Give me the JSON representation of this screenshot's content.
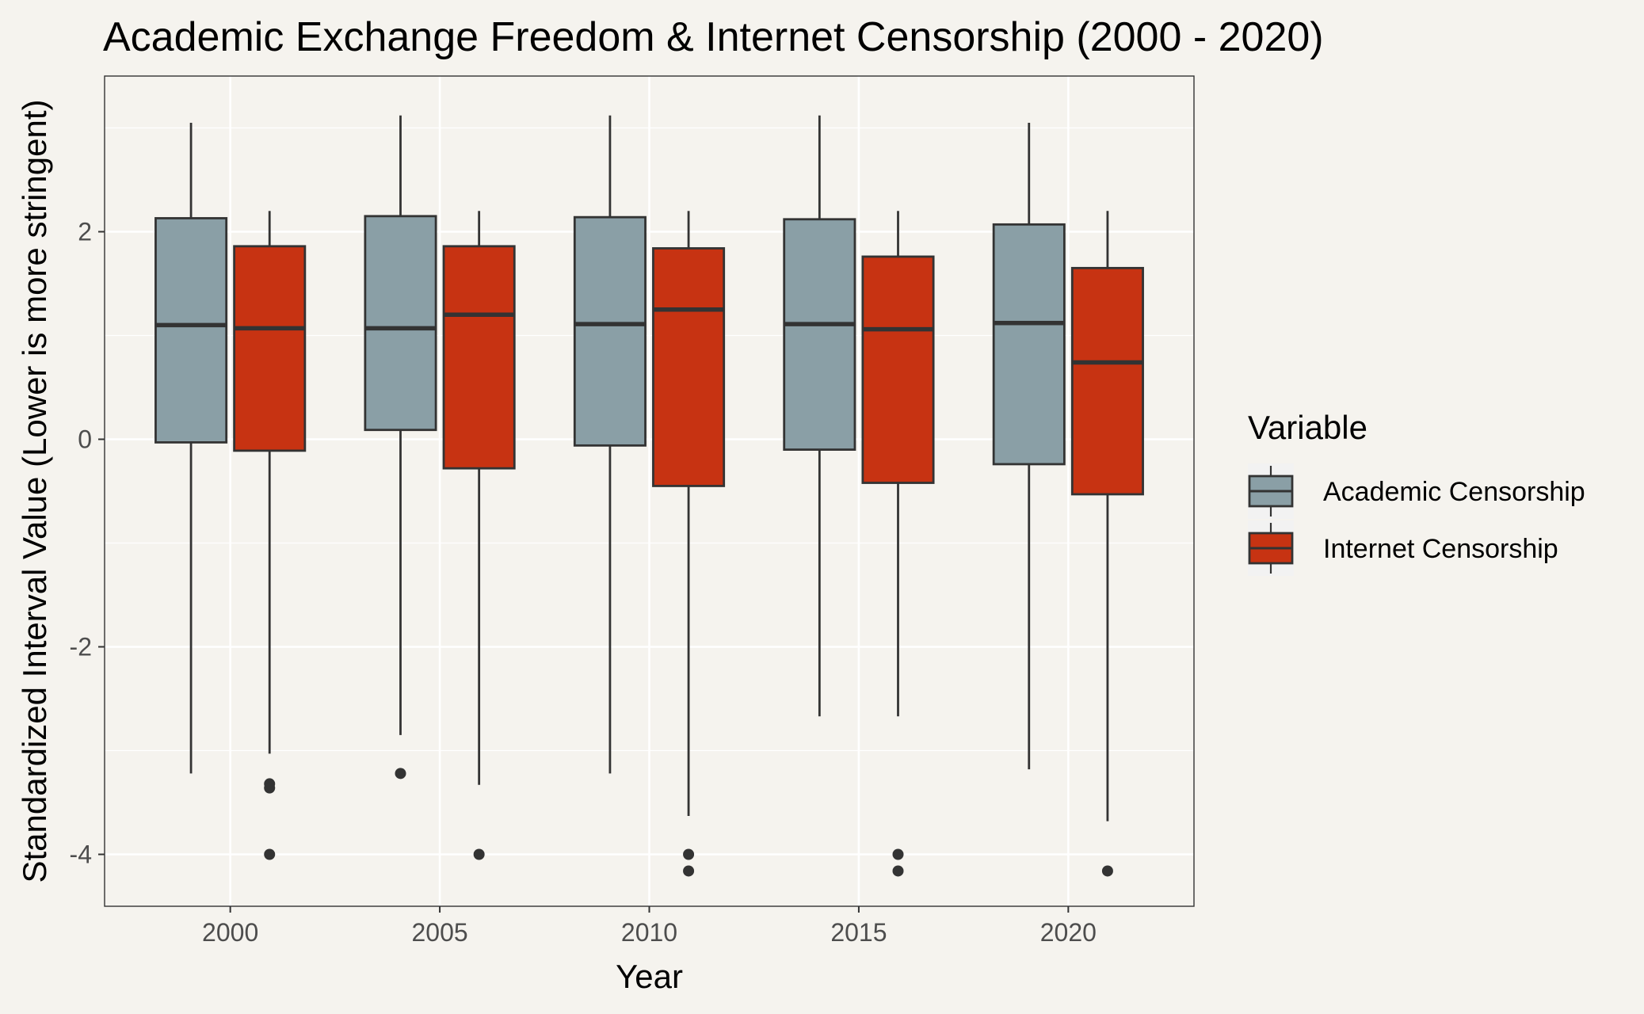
{
  "chart_data": {
    "type": "boxplot",
    "title": "Academic Exchange Freedom & Internet Censorship (2000 - 2020)",
    "xlabel": "Year",
    "ylabel": "Standardized Interval Value (Lower is more stringent)",
    "categories": [
      "2000",
      "2005",
      "2010",
      "2015",
      "2020"
    ],
    "ylim": [
      -4.5,
      3.5
    ],
    "yticks": [
      -4,
      -2,
      0,
      2
    ],
    "ytick_labels": [
      "-4",
      "-2",
      "0",
      "2"
    ],
    "grid": true,
    "legend": {
      "title": "Variable",
      "position": "right"
    },
    "series": [
      {
        "name": "Academic Censorship",
        "color": "#8A9FA6",
        "boxes": [
          {
            "whisker_low": -3.22,
            "q1": -0.03,
            "median": 1.1,
            "q3": 2.13,
            "whisker_high": 3.05,
            "outliers": []
          },
          {
            "whisker_low": -2.85,
            "q1": 0.09,
            "median": 1.07,
            "q3": 2.15,
            "whisker_high": 3.12,
            "outliers": [
              -3.22
            ]
          },
          {
            "whisker_low": -3.22,
            "q1": -0.06,
            "median": 1.11,
            "q3": 2.14,
            "whisker_high": 3.12,
            "outliers": []
          },
          {
            "whisker_low": -2.67,
            "q1": -0.1,
            "median": 1.11,
            "q3": 2.12,
            "whisker_high": 3.12,
            "outliers": []
          },
          {
            "whisker_low": -3.18,
            "q1": -0.24,
            "median": 1.12,
            "q3": 2.07,
            "whisker_high": 3.05,
            "outliers": []
          }
        ]
      },
      {
        "name": "Internet Censorship",
        "color": "#C73312",
        "boxes": [
          {
            "whisker_low": -3.03,
            "q1": -0.11,
            "median": 1.07,
            "q3": 1.86,
            "whisker_high": 2.2,
            "outliers": [
              -3.32,
              -3.36,
              -4.0
            ]
          },
          {
            "whisker_low": -3.33,
            "q1": -0.28,
            "median": 1.2,
            "q3": 1.86,
            "whisker_high": 2.2,
            "outliers": [
              -4.0
            ]
          },
          {
            "whisker_low": -3.63,
            "q1": -0.45,
            "median": 1.25,
            "q3": 1.84,
            "whisker_high": 2.2,
            "outliers": [
              -4.0,
              -4.16
            ]
          },
          {
            "whisker_low": -2.67,
            "q1": -0.42,
            "median": 1.06,
            "q3": 1.76,
            "whisker_high": 2.2,
            "outliers": [
              -4.0,
              -4.16
            ]
          },
          {
            "whisker_low": -3.68,
            "q1": -0.53,
            "median": 0.74,
            "q3": 1.65,
            "whisker_high": 2.2,
            "outliers": [
              -4.16
            ]
          }
        ]
      }
    ]
  },
  "colors": {
    "page_background": "#F5F3EE",
    "panel_background": "#F5F3EE",
    "grid": "#FFFFFF",
    "box_stroke": "#333333",
    "panel_border": "#333333"
  }
}
